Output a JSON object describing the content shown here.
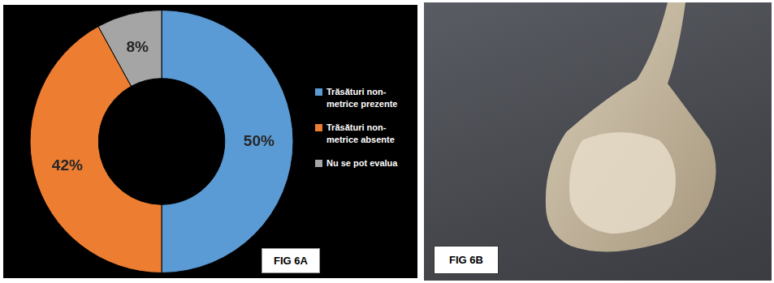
{
  "chart_data": {
    "type": "doughnut",
    "categories": [
      "Trăsături non-metrice prezente",
      "Trăsături non-metrice absente",
      "Nu se pot evalua"
    ],
    "values": [
      50,
      42,
      8
    ],
    "value_labels": [
      "50%",
      "42%",
      "8%"
    ],
    "colors": [
      "#5b9bd5",
      "#ed7d31",
      "#a5a5a5"
    ],
    "data_labels": true,
    "legend": "right",
    "annotations": [
      "FIG 6A"
    ]
  },
  "photo_panel": {
    "label": "FIG 6B"
  }
}
